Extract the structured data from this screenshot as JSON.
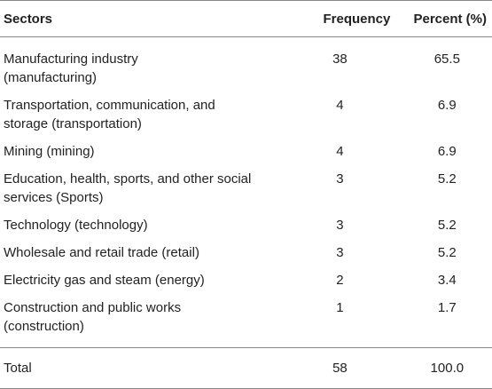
{
  "table": {
    "headers": {
      "sector": "Sectors",
      "frequency": "Frequency",
      "percent": "Percent (%)"
    },
    "rows": [
      {
        "sector": "Manufacturing industry (manufacturing)",
        "frequency": "38",
        "percent": "65.5"
      },
      {
        "sector": "Transportation, communication, and storage (transportation)",
        "frequency": "4",
        "percent": "6.9"
      },
      {
        "sector": "Mining (mining)",
        "frequency": "4",
        "percent": "6.9"
      },
      {
        "sector": "Education, health, sports, and other social services (Sports)",
        "frequency": "3",
        "percent": "5.2"
      },
      {
        "sector": "Technology (technology)",
        "frequency": "3",
        "percent": "5.2"
      },
      {
        "sector": "Wholesale and retail trade (retail)",
        "frequency": "3",
        "percent": "5.2"
      },
      {
        "sector": "Electricity gas and steam (energy)",
        "frequency": "2",
        "percent": "3.4"
      },
      {
        "sector": "Construction and public works (construction)",
        "frequency": "1",
        "percent": "1.7"
      }
    ],
    "total": {
      "sector": "Total",
      "frequency": "58",
      "percent": "100.0"
    }
  }
}
